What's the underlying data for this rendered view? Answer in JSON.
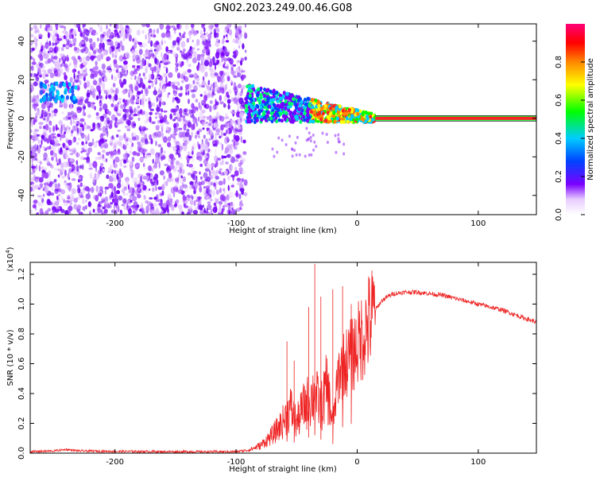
{
  "figure": {
    "title": "GN02.2023.249.00.46.G08"
  },
  "chart_data": [
    {
      "type": "heatmap",
      "xlabel": "Height of straight line (km)",
      "ylabel": "Frequency (Hz)",
      "xlim": [
        -270,
        148
      ],
      "ylim": [
        -50,
        49
      ],
      "xticks": [
        -200,
        -100,
        0,
        100
      ],
      "yticks": [
        -40,
        -20,
        0,
        20,
        40
      ],
      "colorbar": {
        "label": "Normalized spectral amplitude",
        "range": [
          0.0,
          1.0
        ],
        "ticks": [
          0.0,
          0.2,
          0.4,
          0.6,
          0.8
        ]
      },
      "features": {
        "noise_region_x": [
          -270,
          -92
        ],
        "trace_band_x": [
          -92,
          15
        ],
        "line_x": [
          15,
          148
        ],
        "line_frequency": 0
      },
      "colors": {
        "noise": "#7a00ff",
        "line": "#ff2222",
        "line_edge": "#00ff33"
      }
    },
    {
      "type": "line",
      "xlabel": "Height of straight line (km)",
      "ylabel": "SNR (10 * v/v)",
      "yscale_label": "(x10^4)",
      "xlim": [
        -270,
        148
      ],
      "ylim": [
        0.0,
        1.28
      ],
      "xticks": [
        -200,
        -100,
        0,
        100
      ],
      "yticks": [
        0.0,
        0.2,
        0.4,
        0.6,
        0.8,
        1.0,
        1.2
      ],
      "color": "#ee2222",
      "x": [
        -270,
        -250,
        -240,
        -230,
        -200,
        -150,
        -100,
        -90,
        -80,
        -70,
        -62,
        -55,
        -50,
        -45,
        -40,
        -35,
        -30,
        -25,
        -20,
        -15,
        -10,
        -5,
        0,
        5,
        10,
        15,
        20,
        25,
        30,
        40,
        50,
        60,
        70,
        80,
        90,
        100,
        110,
        120,
        130,
        140,
        148
      ],
      "y": [
        0.01,
        0.015,
        0.025,
        0.015,
        0.012,
        0.01,
        0.01,
        0.02,
        0.05,
        0.12,
        0.2,
        0.3,
        0.2,
        0.3,
        0.35,
        0.4,
        0.3,
        0.45,
        0.2,
        0.55,
        0.6,
        0.65,
        0.72,
        0.8,
        0.88,
        0.96,
        1.02,
        1.05,
        1.07,
        1.08,
        1.08,
        1.07,
        1.06,
        1.04,
        1.02,
        1.0,
        0.98,
        0.96,
        0.93,
        0.9,
        0.88
      ],
      "spikes": [
        [
          -58,
          0.75
        ],
        [
          -52,
          0.62
        ],
        [
          -40,
          0.98
        ],
        [
          -35,
          1.27
        ],
        [
          -30,
          1.05
        ],
        [
          -20,
          1.1
        ],
        [
          -12,
          1.12
        ],
        [
          -5,
          1.0
        ]
      ]
    }
  ]
}
